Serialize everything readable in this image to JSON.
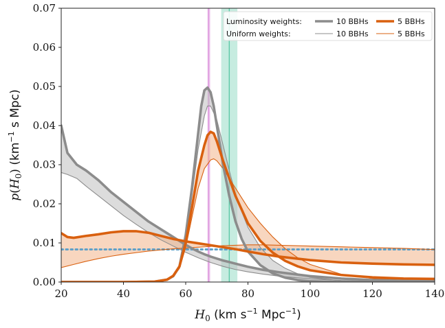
{
  "chart_data": {
    "type": "line",
    "title": "",
    "xlabel": "H_0 (km s^-1 Mpc^-1)",
    "ylabel": "p(H_0) (km^-1 s Mpc)",
    "xlim": [
      20,
      140
    ],
    "ylim": [
      0,
      0.07
    ],
    "x_ticks": [
      20,
      40,
      60,
      80,
      100,
      120,
      140
    ],
    "x_tick_labels": [
      "20",
      "40",
      "60",
      "80",
      "100",
      "120",
      "140"
    ],
    "y_ticks": [
      0.0,
      0.01,
      0.02,
      0.03,
      0.04,
      0.05,
      0.06,
      0.07
    ],
    "y_tick_labels": [
      "0.00",
      "0.01",
      "0.02",
      "0.03",
      "0.04",
      "0.05",
      "0.06",
      "0.07"
    ],
    "grid": false,
    "legend": {
      "placement": "top-right",
      "row_labels": [
        "Luminosity weights:",
        "Uniform weights:"
      ],
      "column_labels": [
        "10 BBHs",
        "5 BBHs"
      ]
    },
    "reference_bands": [
      {
        "center": 67.4,
        "low": 66.9,
        "high": 67.9,
        "color": "#d98ad9"
      },
      {
        "center": 74.0,
        "low": 71.4,
        "high": 76.6,
        "color": "#5cc9a7"
      }
    ],
    "prior_line": {
      "y": 0.00833,
      "color": "#5fa0c8",
      "style": "dotted"
    },
    "series": [
      {
        "name": "10 BBHs",
        "weights": "Luminosity",
        "color": "#8c8c8c",
        "width": "thick",
        "x": [
          20,
          22,
          25,
          28,
          32,
          36,
          40,
          44,
          48,
          52,
          56,
          58,
          60,
          62,
          64,
          66,
          67,
          68,
          70,
          72,
          74,
          76,
          80,
          85,
          90,
          100,
          110,
          120,
          130,
          140
        ],
        "y": [
          0.04,
          0.033,
          0.03,
          0.0285,
          0.026,
          0.023,
          0.0205,
          0.018,
          0.0155,
          0.0135,
          0.0115,
          0.0105,
          0.0095,
          0.0086,
          0.0078,
          0.0071,
          0.0068,
          0.0065,
          0.006,
          0.0055,
          0.0051,
          0.0047,
          0.0039,
          0.0031,
          0.0025,
          0.0015,
          0.0009,
          0.0005,
          0.0003,
          0.0002
        ]
      },
      {
        "name": "10 BBHs",
        "weights": "Luminosity",
        "color": "#8c8c8c",
        "width": "thick",
        "x": [
          20,
          40,
          50,
          54,
          56,
          58,
          60,
          62,
          64,
          65,
          66,
          67,
          68,
          69,
          70,
          72,
          74,
          76,
          78,
          80,
          84,
          88,
          92,
          96,
          100,
          110,
          120,
          140
        ],
        "y": [
          0.0,
          0.0,
          0.0001,
          0.0006,
          0.0015,
          0.004,
          0.012,
          0.024,
          0.038,
          0.045,
          0.049,
          0.0497,
          0.0485,
          0.045,
          0.04,
          0.03,
          0.022,
          0.0155,
          0.011,
          0.0078,
          0.0043,
          0.0022,
          0.0011,
          0.0005,
          0.0002,
          0.0,
          0.0,
          0.0
        ]
      },
      {
        "name": "10 BBHs",
        "weights": "Uniform",
        "color": "#8c8c8c",
        "width": "thin",
        "x": [
          20,
          22,
          25,
          28,
          32,
          36,
          40,
          44,
          48,
          52,
          56,
          58,
          60,
          62,
          64,
          66,
          68,
          70,
          72,
          74,
          76,
          80,
          85,
          90,
          100,
          110,
          120,
          130,
          140
        ],
        "y": [
          0.028,
          0.0275,
          0.0265,
          0.0245,
          0.022,
          0.0195,
          0.017,
          0.0148,
          0.0127,
          0.0108,
          0.0092,
          0.0084,
          0.0076,
          0.0069,
          0.0062,
          0.0056,
          0.005,
          0.0045,
          0.004,
          0.0036,
          0.0032,
          0.0026,
          0.002,
          0.0015,
          0.0008,
          0.0004,
          0.0002,
          0.0001,
          0.0
        ]
      },
      {
        "name": "10 BBHs",
        "weights": "Uniform",
        "color": "#8c8c8c",
        "width": "thin",
        "x": [
          20,
          40,
          50,
          54,
          56,
          58,
          60,
          62,
          64,
          66,
          67,
          68,
          70,
          72,
          74,
          76,
          78,
          80,
          84,
          88,
          92,
          96,
          100,
          110,
          120,
          140
        ],
        "y": [
          0.0,
          0.0,
          0.0001,
          0.0005,
          0.0013,
          0.0035,
          0.0105,
          0.022,
          0.034,
          0.0425,
          0.045,
          0.045,
          0.0415,
          0.035,
          0.0285,
          0.0225,
          0.018,
          0.014,
          0.0088,
          0.0055,
          0.0035,
          0.0021,
          0.0012,
          0.0003,
          0.0001,
          0.0
        ]
      },
      {
        "name": "5 BBHs",
        "weights": "Luminosity",
        "color": "#d9600f",
        "width": "thick",
        "x": [
          20,
          22,
          24,
          28,
          32,
          36,
          40,
          44,
          48,
          52,
          56,
          60,
          64,
          68,
          72,
          76,
          80,
          85,
          90,
          100,
          110,
          120,
          130,
          140
        ],
        "y": [
          0.0125,
          0.0115,
          0.0113,
          0.0118,
          0.0122,
          0.0127,
          0.013,
          0.013,
          0.0126,
          0.0118,
          0.011,
          0.0104,
          0.0099,
          0.0094,
          0.0089,
          0.0084,
          0.0078,
          0.0071,
          0.0065,
          0.0056,
          0.005,
          0.0047,
          0.0045,
          0.0044
        ]
      },
      {
        "name": "5 BBHs",
        "weights": "Luminosity",
        "color": "#d9600f",
        "width": "thick",
        "x": [
          20,
          40,
          50,
          54,
          56,
          58,
          60,
          62,
          64,
          66,
          67,
          68,
          69,
          70,
          72,
          74,
          76,
          78,
          80,
          84,
          88,
          92,
          96,
          100,
          110,
          120,
          130,
          140
        ],
        "y": [
          0.0,
          0.0,
          0.0001,
          0.0006,
          0.0016,
          0.004,
          0.01,
          0.019,
          0.0285,
          0.035,
          0.0375,
          0.0384,
          0.038,
          0.036,
          0.031,
          0.0265,
          0.022,
          0.0185,
          0.015,
          0.0105,
          0.0075,
          0.0054,
          0.004,
          0.003,
          0.0018,
          0.0012,
          0.0009,
          0.0008
        ]
      },
      {
        "name": "5 BBHs",
        "weights": "Uniform",
        "color": "#d9600f",
        "width": "thin",
        "x": [
          20,
          24,
          28,
          32,
          36,
          40,
          44,
          48,
          52,
          56,
          60,
          64,
          68,
          72,
          76,
          80,
          85,
          90,
          100,
          110,
          120,
          130,
          140
        ],
        "y": [
          0.0037,
          0.0045,
          0.0053,
          0.006,
          0.0066,
          0.0071,
          0.0075,
          0.0079,
          0.0082,
          0.0085,
          0.0087,
          0.0089,
          0.0091,
          0.0093,
          0.0094,
          0.0095,
          0.0095,
          0.0094,
          0.0092,
          0.009,
          0.0088,
          0.0086,
          0.0083
        ]
      },
      {
        "name": "5 BBHs",
        "weights": "Uniform",
        "color": "#d9600f",
        "width": "thin",
        "x": [
          20,
          40,
          50,
          54,
          56,
          58,
          60,
          62,
          64,
          66,
          68,
          69,
          70,
          72,
          74,
          76,
          78,
          80,
          84,
          88,
          92,
          96,
          100,
          110,
          120,
          130,
          140
        ],
        "y": [
          0.0,
          0.0,
          0.0001,
          0.0005,
          0.0014,
          0.0035,
          0.0088,
          0.0165,
          0.024,
          0.029,
          0.0312,
          0.0315,
          0.031,
          0.029,
          0.0265,
          0.024,
          0.0215,
          0.019,
          0.015,
          0.0115,
          0.0085,
          0.0062,
          0.0045,
          0.002,
          0.0009,
          0.0005,
          0.0003
        ]
      }
    ],
    "shaded_regions": [
      {
        "between": [
          0,
          2
        ],
        "color": "#bfbfbf"
      },
      {
        "between": [
          1,
          3
        ],
        "color": "#bfbfbf"
      },
      {
        "between": [
          4,
          6
        ],
        "color": "#f3b58a"
      },
      {
        "between": [
          5,
          7
        ],
        "color": "#f3b58a"
      }
    ]
  }
}
